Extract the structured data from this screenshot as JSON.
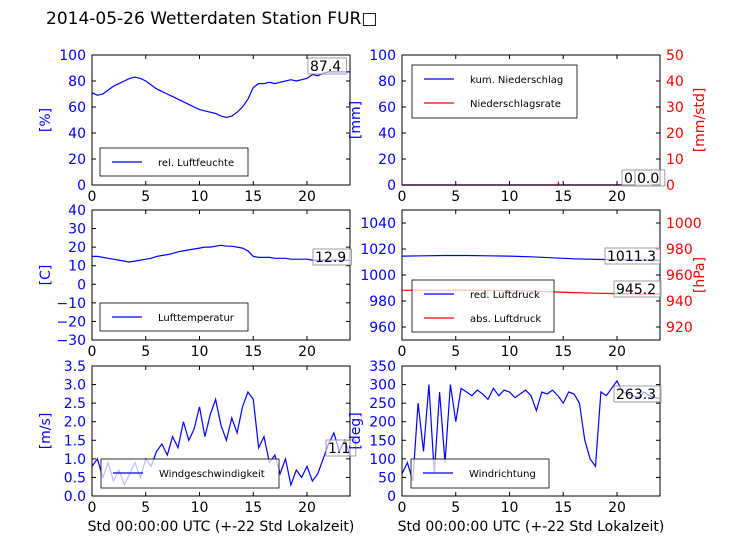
{
  "figure": {
    "title": "2014-05-26 Wetterdaten Station FUR□"
  },
  "colors": {
    "blue": "#0000ff",
    "red": "#ff0000",
    "black": "#000000"
  },
  "chart_data": [
    {
      "id": "humidity",
      "type": "line",
      "xlabel": "",
      "ylabel": "[%]",
      "xlim": [
        0,
        24
      ],
      "ylim": [
        0,
        100
      ],
      "xticks": [
        "0",
        "5",
        "10",
        "15",
        "20"
      ],
      "yticks": [
        "0",
        "20",
        "40",
        "60",
        "80",
        "100"
      ],
      "legend": {
        "placement": "lower-left",
        "entries": [
          "rel. Luftfeuchte"
        ]
      },
      "annotation": "87.4",
      "series": [
        {
          "name": "rel. Luftfeuchte",
          "color": "#0000ff",
          "x": [
            0,
            0.5,
            1,
            1.5,
            2,
            2.5,
            3,
            3.5,
            4,
            4.5,
            5,
            5.5,
            6,
            6.5,
            7,
            7.5,
            8,
            8.5,
            9,
            9.5,
            10,
            10.5,
            11,
            11.5,
            12,
            12.5,
            13,
            13.5,
            14,
            14.5,
            15,
            15.5,
            16,
            16.5,
            17,
            17.5,
            18,
            18.5,
            19,
            19.5,
            20,
            20.5,
            21,
            21.5,
            22,
            22.5,
            23,
            23.5,
            24
          ],
          "y": [
            71,
            69,
            70,
            73,
            76,
            78,
            80,
            82,
            83,
            82,
            80,
            77,
            74,
            72,
            70,
            68,
            66,
            64,
            62,
            60,
            58,
            57,
            56,
            55,
            53,
            52,
            53,
            56,
            60,
            66,
            75,
            78,
            78,
            79,
            78,
            79,
            80,
            81,
            80,
            81,
            82,
            85,
            84,
            86,
            87,
            87,
            87,
            87,
            87
          ]
        }
      ]
    },
    {
      "id": "precip",
      "type": "line",
      "xlabel": "",
      "ylabel": "[mm]",
      "y2label": "[mm/std]",
      "xlim": [
        0,
        24
      ],
      "ylim": [
        0,
        100
      ],
      "y2lim": [
        0,
        50
      ],
      "xticks": [
        "0",
        "5",
        "10",
        "15",
        "20"
      ],
      "yticks": [
        "0",
        "20",
        "40",
        "60",
        "80",
        "100"
      ],
      "y2ticks": [
        "0",
        "10",
        "20",
        "30",
        "40",
        "50"
      ],
      "legend": {
        "placement": "upper-left",
        "entries": [
          "kum. Niederschlag",
          "Niederschlagsrate"
        ]
      },
      "annotation": "0.0",
      "annotation2": "0.0",
      "series": [
        {
          "name": "kum. Niederschlag",
          "color": "#0000ff",
          "axis": "left",
          "x": [
            0,
            24
          ],
          "y": [
            0,
            0
          ]
        },
        {
          "name": "Niederschlagsrate",
          "color": "#ff0000",
          "axis": "right",
          "x": [
            0,
            14.5,
            14.55,
            14.6,
            24
          ],
          "y": [
            0,
            0,
            0.8,
            0,
            0
          ]
        }
      ]
    },
    {
      "id": "temperature",
      "type": "line",
      "xlabel": "",
      "ylabel": "[C]",
      "xlim": [
        0,
        24
      ],
      "ylim": [
        -30,
        40
      ],
      "xticks": [
        "0",
        "5",
        "10",
        "15",
        "20"
      ],
      "yticks": [
        "−30",
        "−20",
        "−10",
        "0",
        "10",
        "20",
        "30",
        "40"
      ],
      "legend": {
        "placement": "lower-left",
        "entries": [
          "Lufttemperatur"
        ]
      },
      "annotation": "12.9",
      "series": [
        {
          "name": "Lufttemperatur",
          "color": "#0000ff",
          "x": [
            0,
            0.5,
            1,
            1.5,
            2,
            2.5,
            3,
            3.5,
            4,
            4.5,
            5,
            5.5,
            6,
            6.5,
            7,
            7.5,
            8,
            8.5,
            9,
            9.5,
            10,
            10.5,
            11,
            11.5,
            12,
            12.5,
            13,
            13.5,
            14,
            14.5,
            15,
            15.5,
            16,
            16.5,
            17,
            17.5,
            18,
            18.5,
            19,
            19.5,
            20,
            20.5,
            21,
            21.5,
            22,
            22.5,
            23,
            23.5,
            24
          ],
          "y": [
            15,
            15,
            14.5,
            14,
            13.5,
            13,
            12.5,
            12,
            12.5,
            13,
            13.5,
            14,
            15,
            15.5,
            16,
            16.5,
            17.5,
            18,
            18.5,
            19,
            19.5,
            20,
            20,
            20.5,
            21,
            20.5,
            20.5,
            20,
            19.5,
            18,
            15,
            14.5,
            14.5,
            14.5,
            14,
            14,
            14,
            13.5,
            13.5,
            13.5,
            13.5,
            13,
            13,
            13,
            13,
            13,
            13,
            12.9,
            12.9
          ]
        }
      ]
    },
    {
      "id": "pressure",
      "type": "line",
      "xlabel": "",
      "ylabel": "",
      "y2label": "[hPa]",
      "xlim": [
        0,
        24
      ],
      "ylim": [
        950,
        1050
      ],
      "y2lim": [
        910,
        1010
      ],
      "xticks": [
        "0",
        "5",
        "10",
        "15",
        "20"
      ],
      "yticks": [
        "960",
        "980",
        "1000",
        "1020",
        "1040"
      ],
      "y2ticks": [
        "920",
        "940",
        "960",
        "980",
        "1000"
      ],
      "legend": {
        "placement": "lower-left",
        "entries": [
          "red. Luftdruck",
          "abs. Luftdruck"
        ]
      },
      "annotation": "1011.3",
      "annotation2": "945.2",
      "series": [
        {
          "name": "red. Luftdruck",
          "color": "#0000ff",
          "axis": "left",
          "x": [
            0,
            2,
            4,
            6,
            8,
            10,
            12,
            14,
            16,
            18,
            20,
            22,
            24
          ],
          "y": [
            1014.5,
            1014.8,
            1015,
            1015,
            1014.8,
            1014.5,
            1014,
            1013.2,
            1012.5,
            1012,
            1011.8,
            1011.5,
            1011.3
          ]
        },
        {
          "name": "abs. Luftdruck",
          "color": "#ff0000",
          "axis": "right",
          "x": [
            0,
            2,
            4,
            6,
            8,
            10,
            12,
            14,
            16,
            18,
            20,
            22,
            24
          ],
          "y": [
            948.2,
            948.3,
            948.3,
            948.4,
            948.2,
            948,
            947.6,
            947,
            946.5,
            946,
            945.7,
            945.4,
            945.2
          ]
        }
      ]
    },
    {
      "id": "wind-speed",
      "type": "line",
      "xlabel": "Std 00:00:00 UTC (+-22 Std Lokalzeit)",
      "ylabel": "[m/s]",
      "xlim": [
        0,
        24
      ],
      "ylim": [
        0,
        3.5
      ],
      "xticks": [
        "0",
        "5",
        "10",
        "15",
        "20"
      ],
      "yticks": [
        "0.0",
        "0.5",
        "1.0",
        "1.5",
        "2.0",
        "2.5",
        "3.0",
        "3.5"
      ],
      "legend": {
        "placement": "lower-center",
        "entries": [
          "Windgeschwindigkeit"
        ]
      },
      "annotation": "1.1",
      "series": [
        {
          "name": "Windgeschwindigkeit",
          "color": "#0000ff",
          "x": [
            0,
            0.5,
            1,
            1.5,
            2,
            2.5,
            3,
            3.5,
            4,
            4.5,
            5,
            5.5,
            6,
            6.5,
            7,
            7.5,
            8,
            8.5,
            9,
            9.5,
            10,
            10.5,
            11,
            11.5,
            12,
            12.5,
            13,
            13.5,
            14,
            14.5,
            15,
            15.5,
            16,
            16.5,
            17,
            17.5,
            18,
            18.5,
            19,
            19.5,
            20,
            20.5,
            21,
            21.5,
            22,
            22.5,
            23,
            23.5,
            24
          ],
          "y": [
            0.8,
            1.0,
            0.5,
            0.9,
            0.4,
            0.7,
            0.3,
            0.6,
            0.9,
            0.5,
            1.0,
            0.8,
            1.2,
            1.4,
            1.1,
            1.6,
            1.3,
            2.0,
            1.5,
            1.8,
            2.4,
            1.6,
            2.2,
            2.6,
            1.9,
            1.5,
            2.1,
            1.7,
            2.4,
            2.8,
            2.6,
            1.3,
            1.6,
            0.9,
            1.1,
            0.6,
            1.0,
            0.3,
            0.7,
            0.5,
            0.8,
            0.4,
            0.6,
            1.0,
            1.4,
            1.7,
            1.2,
            1.5,
            1.1
          ]
        }
      ]
    },
    {
      "id": "wind-direction",
      "type": "line",
      "xlabel": "Std 00:00:00 UTC (+-22 Std Lokalzeit)",
      "ylabel": "[deg]",
      "xlim": [
        0,
        24
      ],
      "ylim": [
        0,
        350
      ],
      "xticks": [
        "0",
        "5",
        "10",
        "15",
        "20"
      ],
      "yticks": [
        "0",
        "50",
        "100",
        "150",
        "200",
        "250",
        "300",
        "350"
      ],
      "legend": {
        "placement": "lower-center",
        "entries": [
          "Windrichtung"
        ]
      },
      "annotation": "263.3",
      "series": [
        {
          "name": "Windrichtung",
          "color": "#0000ff",
          "x": [
            0,
            0.5,
            1,
            1.5,
            2,
            2.5,
            3,
            3.5,
            4,
            4.5,
            5,
            5.5,
            6,
            6.5,
            7,
            7.5,
            8,
            8.5,
            9,
            9.5,
            10,
            10.5,
            11,
            11.5,
            12,
            12.5,
            13,
            13.5,
            14,
            14.5,
            15,
            15.5,
            16,
            16.5,
            17,
            17.5,
            18,
            18.5,
            19,
            19.5,
            20,
            20.5,
            21,
            21.5,
            22,
            22.5,
            23,
            23.5,
            24
          ],
          "y": [
            60,
            90,
            40,
            250,
            120,
            300,
            60,
            280,
            90,
            300,
            200,
            290,
            280,
            270,
            285,
            275,
            260,
            290,
            270,
            285,
            280,
            265,
            275,
            285,
            270,
            230,
            280,
            275,
            285,
            270,
            250,
            280,
            275,
            250,
            150,
            100,
            80,
            280,
            270,
            290,
            310,
            280,
            275,
            270,
            265,
            280,
            270,
            265,
            263
          ]
        }
      ]
    }
  ]
}
